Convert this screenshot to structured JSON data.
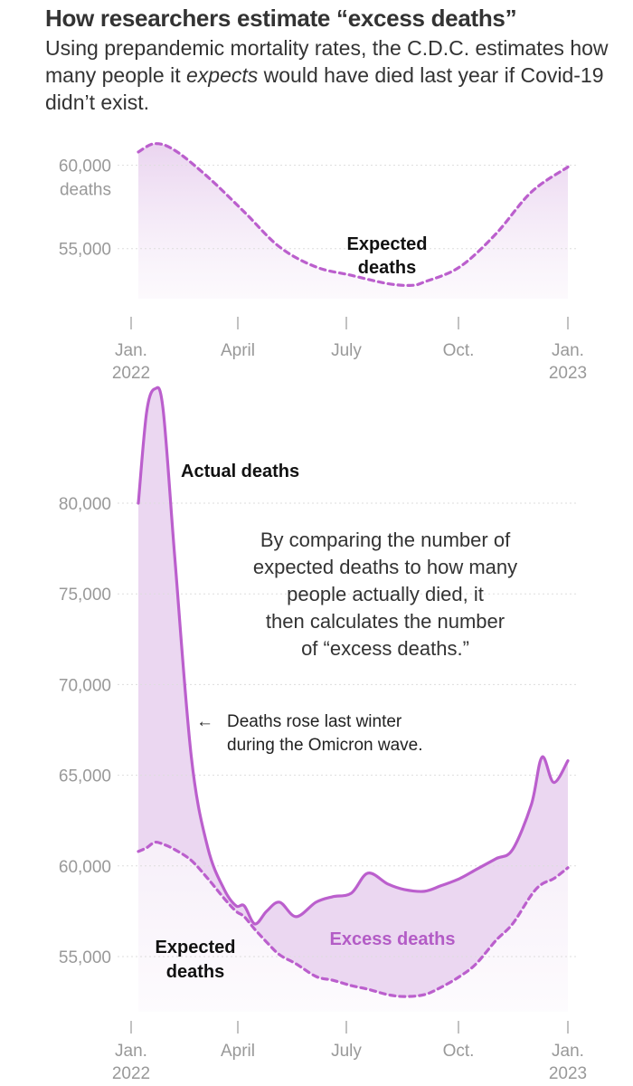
{
  "header": {
    "title": "How researchers estimate “excess deaths”",
    "subtitle_part1": "Using prepandemic mortality rates, the C.D.C. estimates how many people it ",
    "subtitle_emph": "expects",
    "subtitle_part2": " would have died last year if Covid-19 didn’t exist."
  },
  "colors": {
    "line": "#bb5fcd",
    "fill": "#e8d0ee",
    "fill_top": "#f3e8f6",
    "grid": "#dddddd",
    "tick": "#999999"
  },
  "chart_data": [
    {
      "type": "line",
      "title": "",
      "x_unit": "week",
      "x": [
        "2022-01-01",
        "2022-01-15",
        "2022-02-01",
        "2022-03-01",
        "2022-04-01",
        "2022-05-01",
        "2022-06-01",
        "2022-07-01",
        "2022-08-01",
        "2022-08-21",
        "2022-09-01",
        "2022-10-01",
        "2022-11-01",
        "2022-12-01",
        "2023-01-01"
      ],
      "series": [
        {
          "name": "Expected deaths",
          "style": "dashed",
          "values": [
            60800,
            61300,
            60900,
            59300,
            57200,
            55100,
            53900,
            53400,
            52900,
            52800,
            53000,
            53900,
            55900,
            58400,
            59900
          ]
        }
      ],
      "y_ticks": [
        55000,
        60000
      ],
      "y_tick_labels": [
        "55,000",
        "60,000"
      ],
      "y_unit_label": "deaths",
      "ylim": [
        52000,
        61500
      ],
      "x_ticks": [
        "Jan.",
        "April",
        "July",
        "Oct.",
        "Jan."
      ],
      "x_tick_years": [
        "2022",
        "",
        "",
        "",
        "2023"
      ],
      "annotations": [
        "Expected",
        "deaths"
      ],
      "grid": true
    },
    {
      "type": "area",
      "title": "",
      "x_unit": "week",
      "x": [
        "2022-01-01",
        "2022-01-08",
        "2022-01-15",
        "2022-01-22",
        "2022-02-01",
        "2022-02-15",
        "2022-03-01",
        "2022-03-15",
        "2022-03-25",
        "2022-04-01",
        "2022-04-10",
        "2022-04-20",
        "2022-05-01",
        "2022-05-15",
        "2022-06-01",
        "2022-06-15",
        "2022-07-01",
        "2022-07-15",
        "2022-08-01",
        "2022-08-15",
        "2022-09-01",
        "2022-09-15",
        "2022-10-01",
        "2022-10-15",
        "2022-11-01",
        "2022-11-15",
        "2022-12-01",
        "2022-12-10",
        "2022-12-20",
        "2023-01-01"
      ],
      "series": [
        {
          "name": "Actual deaths",
          "style": "solid",
          "values": [
            80000,
            85000,
            86300,
            85200,
            77000,
            66000,
            61000,
            58700,
            57800,
            57800,
            56800,
            57500,
            58000,
            57200,
            58000,
            58300,
            58500,
            59600,
            59000,
            58700,
            58600,
            58900,
            59300,
            59800,
            60400,
            60900,
            63400,
            66000,
            64600,
            65800
          ]
        },
        {
          "name": "Expected deaths",
          "style": "dashed",
          "values": [
            60800,
            61000,
            61300,
            61200,
            60900,
            60300,
            59300,
            58200,
            57500,
            57200,
            56500,
            55800,
            55100,
            54600,
            53900,
            53700,
            53400,
            53200,
            52900,
            52800,
            52900,
            53300,
            53900,
            54600,
            55900,
            56800,
            58400,
            59000,
            59300,
            59900
          ]
        }
      ],
      "y_ticks": [
        55000,
        60000,
        65000,
        70000,
        75000,
        80000
      ],
      "y_tick_labels": [
        "55,000",
        "60,000",
        "65,000",
        "70,000",
        "75,000",
        "80,000"
      ],
      "ylim": [
        52000,
        87000
      ],
      "x_ticks": [
        "Jan.",
        "April",
        "July",
        "Oct.",
        "Jan."
      ],
      "x_tick_years": [
        "2022",
        "",
        "",
        "",
        "2023"
      ],
      "annotations": {
        "actual": "Actual deaths",
        "expected_1": "Expected",
        "expected_2": "deaths",
        "excess": "Excess deaths",
        "omicron_1": "Deaths rose last winter",
        "omicron_2": "during the Omicron wave.",
        "explain": [
          "By comparing the number of",
          "expected deaths to how many",
          "people actually died, it",
          "then calculates the number",
          "of “excess deaths.”"
        ],
        "omicron_arrow_glyph": "←"
      },
      "grid": true
    }
  ]
}
